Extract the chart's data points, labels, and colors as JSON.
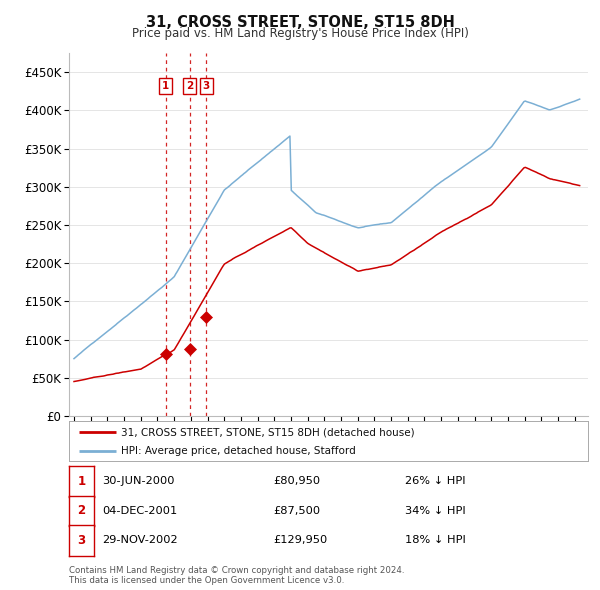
{
  "title": "31, CROSS STREET, STONE, ST15 8DH",
  "subtitle": "Price paid vs. HM Land Registry's House Price Index (HPI)",
  "sale_color": "#cc0000",
  "hpi_color": "#7bafd4",
  "vline_color": "#cc0000",
  "sale_dates": [
    2000.496,
    2001.921,
    2002.912
  ],
  "sale_prices": [
    80950,
    87500,
    129950
  ],
  "sale_labels": [
    "1",
    "2",
    "3"
  ],
  "legend_sale_label": "31, CROSS STREET, STONE, ST15 8DH (detached house)",
  "legend_hpi_label": "HPI: Average price, detached house, Stafford",
  "table_rows": [
    {
      "num": "1",
      "date": "30-JUN-2000",
      "price": "£80,950",
      "change": "26% ↓ HPI"
    },
    {
      "num": "2",
      "date": "04-DEC-2001",
      "price": "£87,500",
      "change": "34% ↓ HPI"
    },
    {
      "num": "3",
      "date": "29-NOV-2002",
      "price": "£129,950",
      "change": "18% ↓ HPI"
    }
  ],
  "footer": "Contains HM Land Registry data © Crown copyright and database right 2024.\nThis data is licensed under the Open Government Licence v3.0.",
  "yticks": [
    0,
    50000,
    100000,
    150000,
    200000,
    250000,
    300000,
    350000,
    400000,
    450000
  ],
  "ytick_labels": [
    "£0",
    "£50K",
    "£100K",
    "£150K",
    "£200K",
    "£250K",
    "£300K",
    "£350K",
    "£400K",
    "£450K"
  ],
  "xlim": [
    1994.7,
    2025.8
  ],
  "ylim": [
    0,
    475000
  ],
  "background_color": "#ffffff",
  "grid_color": "#e0e0e0"
}
